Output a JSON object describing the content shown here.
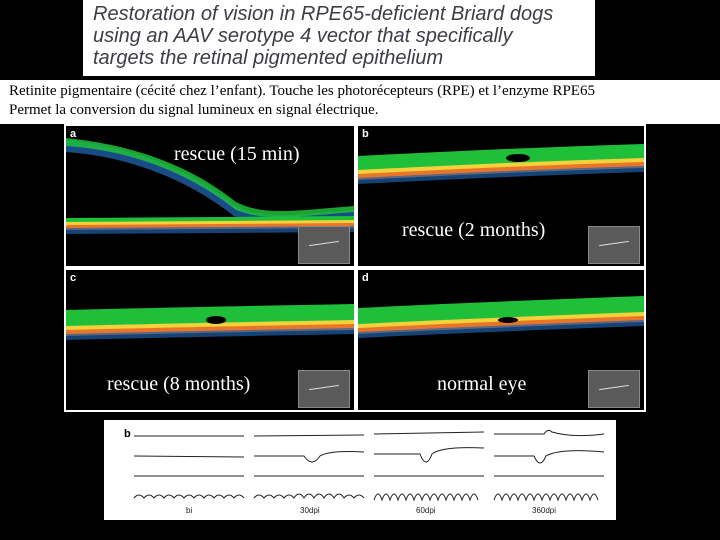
{
  "title": {
    "lines": [
      "Restoration of vision in RPE65-deficient Briard dogs",
      "using an AAV serotype 4 vector that specifically",
      "targets the retinal pigmented epithelium"
    ]
  },
  "caption": {
    "line1": "Retinite pigmentaire (cécité chez l’enfant). Touche les photorécepteurs (RPE) et l’enzyme RPE65",
    "line2": "Permet la conversion du signal lumineux en signal électrique."
  },
  "panels": {
    "a": {
      "letter": "a",
      "label": "rescue (15 min)"
    },
    "b": {
      "letter": "b",
      "label": "rescue (2 months)"
    },
    "c": {
      "letter": "c",
      "label": "rescue (8 months)"
    },
    "d": {
      "letter": "d",
      "label": "normal eye"
    }
  },
  "erg": {
    "letter": "b",
    "timepoints": [
      "bi",
      "30dpi",
      "60dpi",
      "360dpi"
    ]
  },
  "colors": {
    "retina_green": "#1fbf3a",
    "retina_yellow": "#f2d13a",
    "retina_orange": "#e8762a",
    "retina_blue": "#1e5fa8"
  }
}
